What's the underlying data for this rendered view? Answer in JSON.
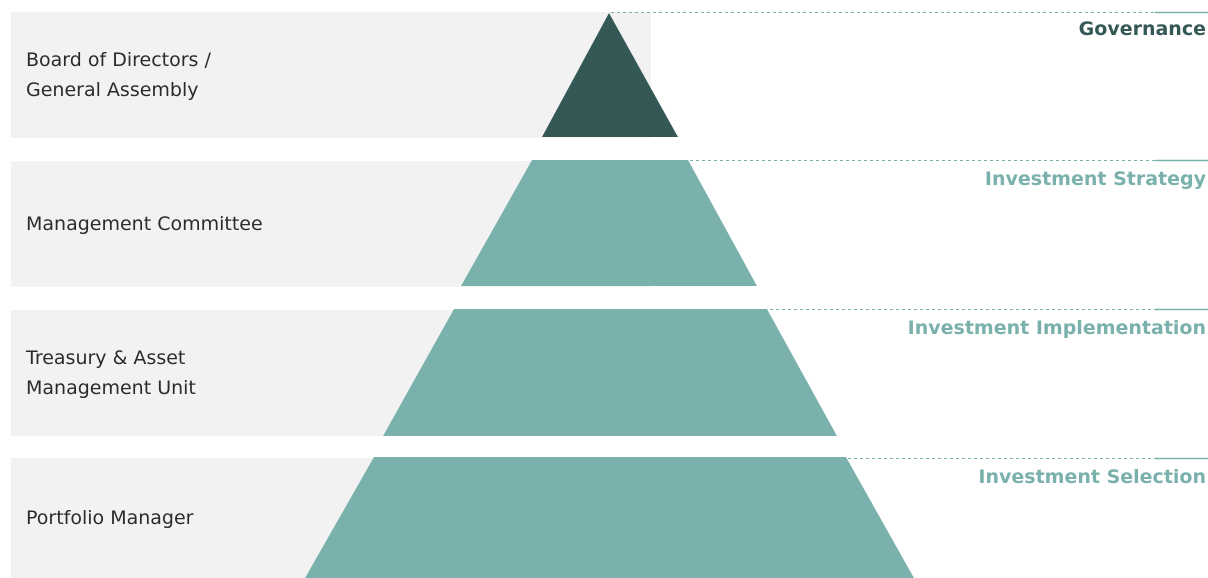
{
  "colors": {
    "band_bg": "#f2f2f2",
    "apex_fill": "#345856",
    "tier_fill": "#7ab1ac",
    "governance_text": "#345856",
    "level_text": "#7ab1ac"
  },
  "tiers": [
    {
      "role": "Board of Directors /\nGeneral Assembly",
      "level": "Governance"
    },
    {
      "role": "Management Committee",
      "level": "Investment Strategy"
    },
    {
      "role": "Treasury & Asset\nManagement Unit",
      "level": "Investment Implementation"
    },
    {
      "role": "Portfolio Manager",
      "level": "Investment Selection"
    }
  ]
}
